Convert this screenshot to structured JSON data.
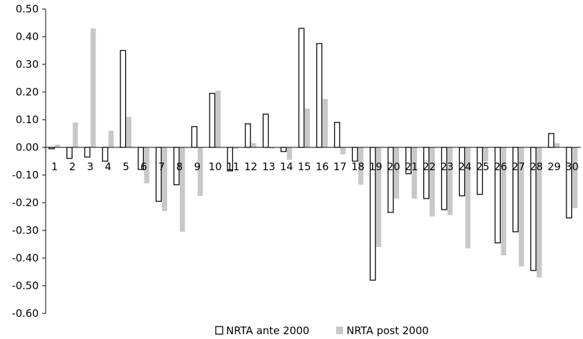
{
  "chart_data": {
    "type": "bar",
    "categories": [
      "1",
      "2",
      "3",
      "4",
      "5",
      "6",
      "7",
      "8",
      "9",
      "10",
      "11",
      "12",
      "13",
      "14",
      "15",
      "16",
      "17",
      "18",
      "19",
      "20",
      "21",
      "22",
      "23",
      "24",
      "25",
      "26",
      "27",
      "28",
      "29",
      "30"
    ],
    "series": [
      {
        "name": "NRTA ante 2000",
        "values": [
          -0.005,
          -0.04,
          -0.035,
          -0.05,
          0.35,
          -0.08,
          -0.195,
          -0.135,
          0.075,
          0.195,
          -0.085,
          0.085,
          0.12,
          -0.015,
          0.43,
          0.375,
          0.09,
          -0.05,
          -0.48,
          -0.235,
          -0.095,
          -0.185,
          -0.225,
          -0.175,
          -0.17,
          -0.345,
          -0.305,
          -0.445,
          0.05,
          -0.255
        ],
        "color": "#ffffff",
        "stroke": "#000000"
      },
      {
        "name": "NRTA post 2000",
        "values": [
          0.01,
          0.09,
          0.43,
          0.06,
          0.11,
          -0.13,
          -0.23,
          -0.305,
          -0.175,
          0.205,
          -0.005,
          0.015,
          -0.005,
          -0.045,
          0.14,
          0.175,
          -0.025,
          -0.135,
          -0.36,
          -0.185,
          -0.185,
          -0.25,
          -0.245,
          -0.365,
          -0.05,
          -0.39,
          -0.43,
          -0.47,
          0.015,
          -0.22
        ],
        "color": "#c8c8c8"
      }
    ],
    "y_ticks": [
      "0.50",
      "0.40",
      "0.30",
      "0.20",
      "0.10",
      "0.00",
      "-0.10",
      "-0.20",
      "-0.30",
      "-0.40",
      "-0.50",
      "-0.60"
    ],
    "ylim": [
      -0.6,
      0.5
    ],
    "legend_position": "bottom",
    "grid": false
  }
}
